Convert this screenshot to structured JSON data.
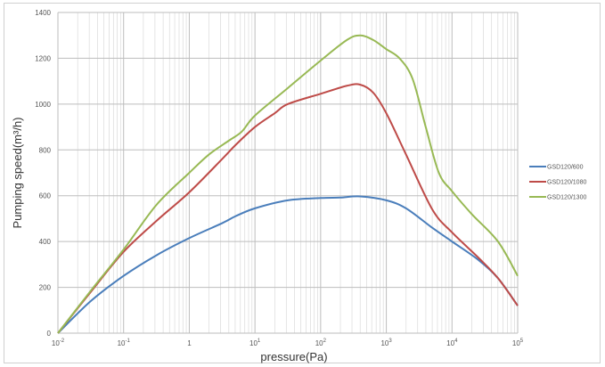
{
  "chart_data": {
    "type": "line",
    "title": "",
    "xlabel": "pressure(Pa)",
    "ylabel": "Pumping speed(m³/h)",
    "xscale": "log",
    "xlim": [
      0.01,
      100000
    ],
    "ylim": [
      0,
      1400
    ],
    "grid": true,
    "legend_position": "right",
    "y_ticks": [
      "0",
      "200",
      "400",
      "600",
      "800",
      "1000",
      "1200",
      "1400"
    ],
    "x_ticks": [
      {
        "base": "10",
        "exp": "-2"
      },
      {
        "base": "10",
        "exp": "-1"
      },
      {
        "base": "1",
        "exp": ""
      },
      {
        "base": "10",
        "exp": "1"
      },
      {
        "base": "10",
        "exp": "2"
      },
      {
        "base": "10",
        "exp": "3"
      },
      {
        "base": "10",
        "exp": "4"
      },
      {
        "base": "10",
        "exp": "5"
      }
    ],
    "series": [
      {
        "name": "GSD120/600",
        "color": "#4a7ebb",
        "log10_x": [
          -2,
          -1.5,
          -1,
          -0.5,
          0,
          0.5,
          0.7,
          1,
          1.5,
          2,
          2.3,
          2.6,
          3,
          3.3,
          3.7,
          4,
          4.4,
          4.7,
          5
        ],
        "values": [
          0,
          140,
          250,
          340,
          415,
          480,
          510,
          545,
          580,
          590,
          592,
          597,
          580,
          545,
          460,
          400,
          320,
          240,
          120
        ]
      },
      {
        "name": "GSD120/1080",
        "color": "#be4b48",
        "log10_x": [
          -2,
          -1.5,
          -1,
          -0.5,
          0,
          0.5,
          0.7,
          1,
          1.3,
          1.5,
          2,
          2.4,
          2.6,
          2.8,
          3,
          3.3,
          3.7,
          4,
          4.4,
          4.7,
          5
        ],
        "values": [
          0,
          180,
          355,
          490,
          615,
          760,
          820,
          900,
          960,
          1000,
          1045,
          1080,
          1085,
          1050,
          960,
          780,
          540,
          440,
          330,
          240,
          120
        ]
      },
      {
        "name": "GSD120/1300",
        "color": "#98b954",
        "log10_x": [
          -2,
          -1.5,
          -1,
          -0.5,
          0,
          0.3,
          0.6,
          0.8,
          1,
          1.5,
          2,
          2.4,
          2.6,
          2.8,
          3,
          3.2,
          3.4,
          3.6,
          3.8,
          4,
          4.3,
          4.7,
          5
        ],
        "values": [
          0,
          185,
          365,
          560,
          700,
          780,
          840,
          880,
          950,
          1070,
          1190,
          1280,
          1300,
          1280,
          1240,
          1200,
          1110,
          900,
          700,
          620,
          520,
          400,
          250
        ]
      }
    ]
  }
}
